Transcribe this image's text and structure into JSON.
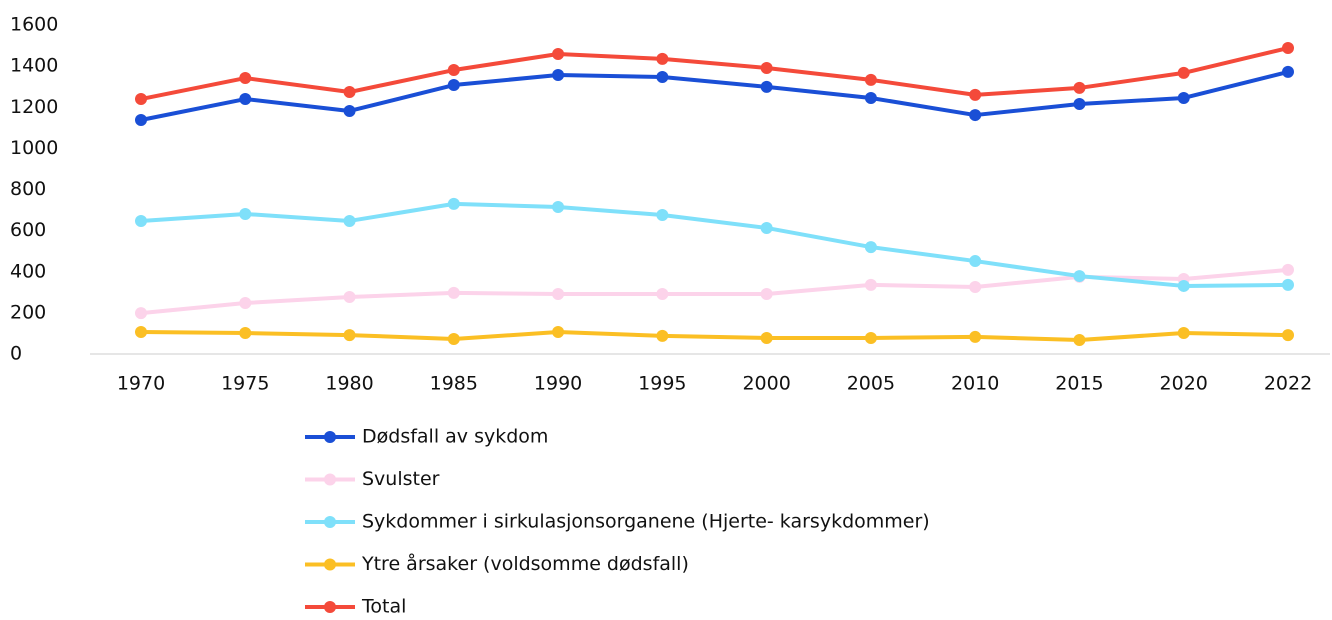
{
  "chart_data": {
    "type": "line",
    "categories": [
      "1970",
      "1975",
      "1980",
      "1985",
      "1990",
      "1995",
      "2000",
      "2005",
      "2010",
      "2015",
      "2020",
      "2022"
    ],
    "ylim": [
      0,
      1600
    ],
    "yticks": [
      0,
      200,
      400,
      600,
      800,
      1000,
      1200,
      1400,
      1600
    ],
    "grid": false,
    "legend": "bottom",
    "series": [
      {
        "name": "Dødsfall av sykdom",
        "color": "#1a4fd6",
        "values": [
          1138,
          1240,
          1182,
          1308,
          1357,
          1347,
          1299,
          1245,
          1162,
          1216,
          1245,
          1372
        ]
      },
      {
        "name": "Svulster",
        "color": "#fcd3ea",
        "values": [
          199,
          248,
          277,
          297,
          292,
          292,
          292,
          336,
          326,
          375,
          365,
          409
        ]
      },
      {
        "name": "Sykdommer i sirkulasjonsorganene (Hjerte- karsykdommer)",
        "color": "#7fe0fa",
        "values": [
          647,
          681,
          647,
          730,
          715,
          676,
          613,
          520,
          452,
          379,
          331,
          336
        ]
      },
      {
        "name": "Ytre årsaker (voldsomme dødsfall)",
        "color": "#fbbf24",
        "values": [
          107,
          102,
          92,
          73,
          107,
          88,
          78,
          78,
          83,
          68,
          102,
          92
        ]
      },
      {
        "name": "Total",
        "color": "#f44a3a",
        "values": [
          1240,
          1342,
          1274,
          1381,
          1459,
          1435,
          1391,
          1333,
          1260,
          1294,
          1367,
          1488
        ]
      }
    ]
  }
}
